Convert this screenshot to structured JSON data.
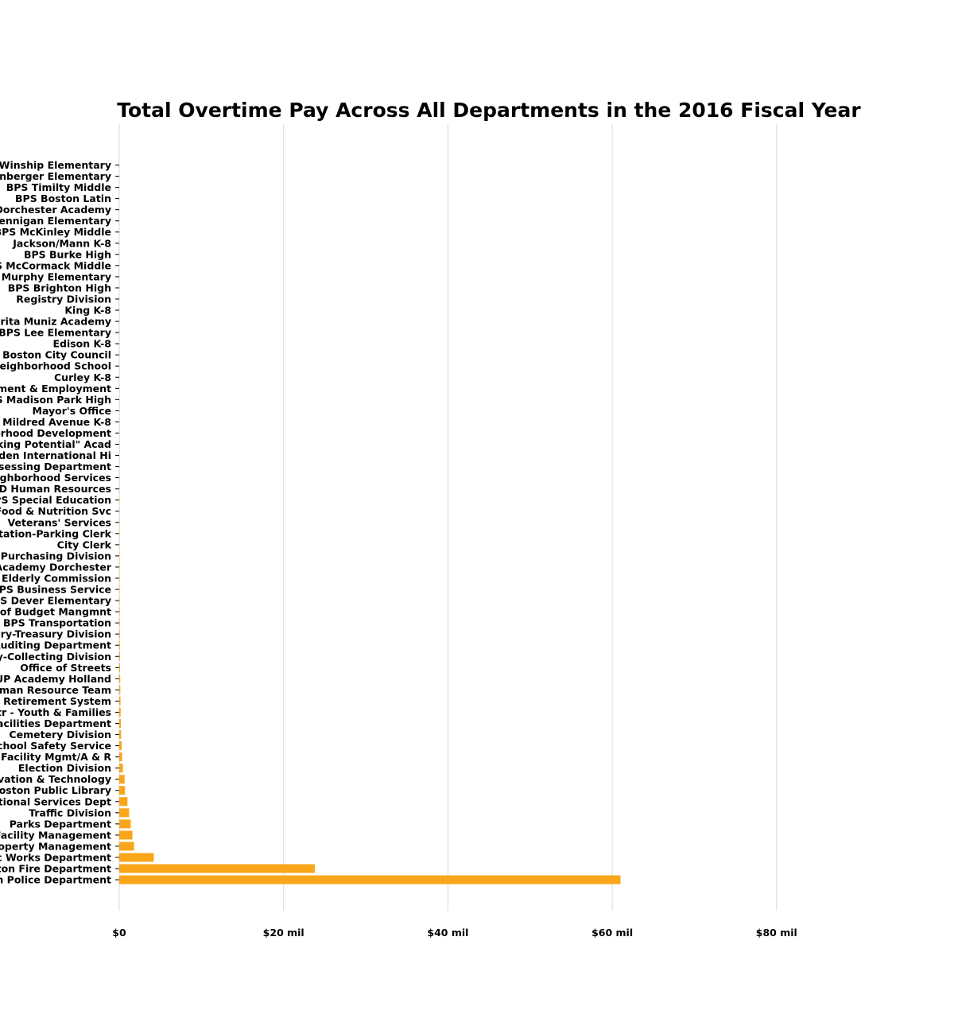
{
  "chart_data": {
    "type": "bar",
    "orientation": "horizontal",
    "title": "Total Overtime Pay Across All Departments in the 2016 Fiscal Year",
    "xlabel": "",
    "ylabel": "",
    "xlim": [
      0,
      100
    ],
    "x_ticks": [
      {
        "value": 0,
        "label": "$0"
      },
      {
        "value": 20,
        "label": "$20 mil"
      },
      {
        "value": 40,
        "label": "$40 mil"
      },
      {
        "value": 60,
        "label": "$60 mil"
      },
      {
        "value": 80,
        "label": "$80 mil"
      }
    ],
    "grid": true,
    "bar_color": "#f9a61a",
    "categories": [
      "BPS Winship Elementary",
      "BPS Ellis Mendell Perenberger Elementary",
      "BPS Timilty Middle",
      "BPS Boston Latin",
      "BPS Dorchester Academy",
      "BPS Hennigan Elementary",
      "BPS McKinley Middle",
      "Jackson/Mann K-8",
      "BPS Burke High",
      "BPS McCormack Middle",
      "BPS Murphy Elementary",
      "BPS Brighton High",
      "Registry Division",
      "King K-8",
      "Margarita Muniz Academy",
      "BPS Lee Elementary",
      "Edison K-8",
      "Boston City Council",
      "Neighborhood School",
      "Curley K-8",
      "Office of Workforce Engagement & Employment",
      "BPS Madison Park High",
      "Mayor's Office",
      "Mildred Avenue K-8",
      "Department of Neighborhood Development",
      "\"Unlocking Potential\" Acad",
      "Snowden International Hi",
      "Assessing Department",
      "Neighborhood Services",
      "BSD Human Resources",
      "BPS Special Education",
      "Food & Nutrition Svc",
      "Veterans' Services",
      "Transportation-Parking Clerk",
      "City Clerk",
      "ASD Purchasing Division",
      "UP Academy Dorchester",
      "Elderly Commission",
      "BPS Business Service",
      "BPS Dever Elementary",
      "Office of Budget Mangmnt",
      "BPS Transportation",
      "Treasury-Treasury Division",
      "Auditing Department",
      "Treasury-Collecting Division",
      "Office of Streets",
      "UP Academy Holland",
      "Human Resource Team",
      "Boston Retirement System",
      "Boston Cntr - Youth & Families",
      "Facilities Department",
      "Cemetery Division",
      "School Safety Service",
      "BPS Facility Mgmt/A & R",
      "Election Division",
      "Innovation & Technology",
      "Boston Public Library",
      "Correctional Services Dept",
      "Traffic Division",
      "Parks Department",
      "Facility Management",
      "Property Management",
      "Public Works Department",
      "Boston Fire Department",
      "Boston Police Department"
    ],
    "values": [
      0.001,
      0.001,
      0.002,
      0.002,
      0.002,
      0.003,
      0.003,
      0.003,
      0.004,
      0.004,
      0.004,
      0.005,
      0.005,
      0.006,
      0.006,
      0.007,
      0.007,
      0.008,
      0.008,
      0.009,
      0.01,
      0.011,
      0.012,
      0.013,
      0.014,
      0.015,
      0.016,
      0.018,
      0.02,
      0.022,
      0.024,
      0.026,
      0.028,
      0.03,
      0.032,
      0.035,
      0.038,
      0.04,
      0.045,
      0.05,
      0.055,
      0.06,
      0.07,
      0.08,
      0.09,
      0.1,
      0.12,
      0.13,
      0.15,
      0.17,
      0.2,
      0.22,
      0.3,
      0.35,
      0.45,
      0.65,
      0.7,
      1.0,
      1.2,
      1.4,
      1.6,
      1.8,
      4.2,
      23.8,
      61.0
    ]
  }
}
